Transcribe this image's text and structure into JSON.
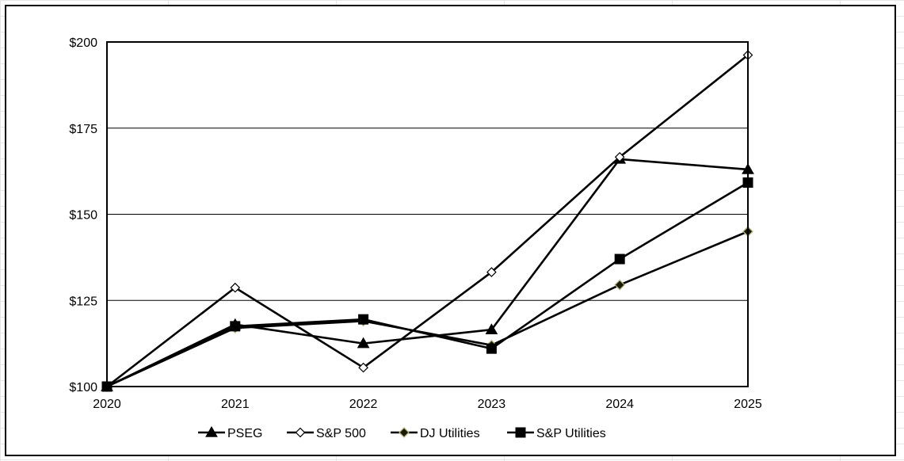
{
  "chart_data": {
    "type": "line",
    "x": [
      "2020",
      "2021",
      "2022",
      "2023",
      "2024",
      "2025"
    ],
    "ylim": [
      100,
      200
    ],
    "y_ticks": [
      100,
      125,
      150,
      175,
      200
    ],
    "y_tick_labels": [
      "$100",
      "$125",
      "$150",
      "$175",
      "$200"
    ],
    "grid": "horizontal",
    "legend_position": "bottom",
    "series": [
      {
        "name": "PSEG",
        "marker": "triangle",
        "values": [
          100,
          118,
          112.5,
          116.5,
          166,
          163
        ]
      },
      {
        "name": "S&P 500",
        "marker": "diamond-open",
        "values": [
          100,
          128.7,
          105.5,
          133.2,
          166.6,
          196.2
        ]
      },
      {
        "name": "DJ Utilities",
        "marker": "diamond-filled",
        "values": [
          100,
          117,
          119,
          112,
          129.5,
          145
        ]
      },
      {
        "name": "S&P Utilities",
        "marker": "square",
        "values": [
          100,
          117.5,
          119.5,
          111,
          137,
          159.2
        ]
      }
    ],
    "colors": {
      "line": "#000000",
      "dj_marker_fill": "#1a1a00",
      "dj_marker_stroke": "#b5b58a",
      "grid": "#000000"
    }
  }
}
